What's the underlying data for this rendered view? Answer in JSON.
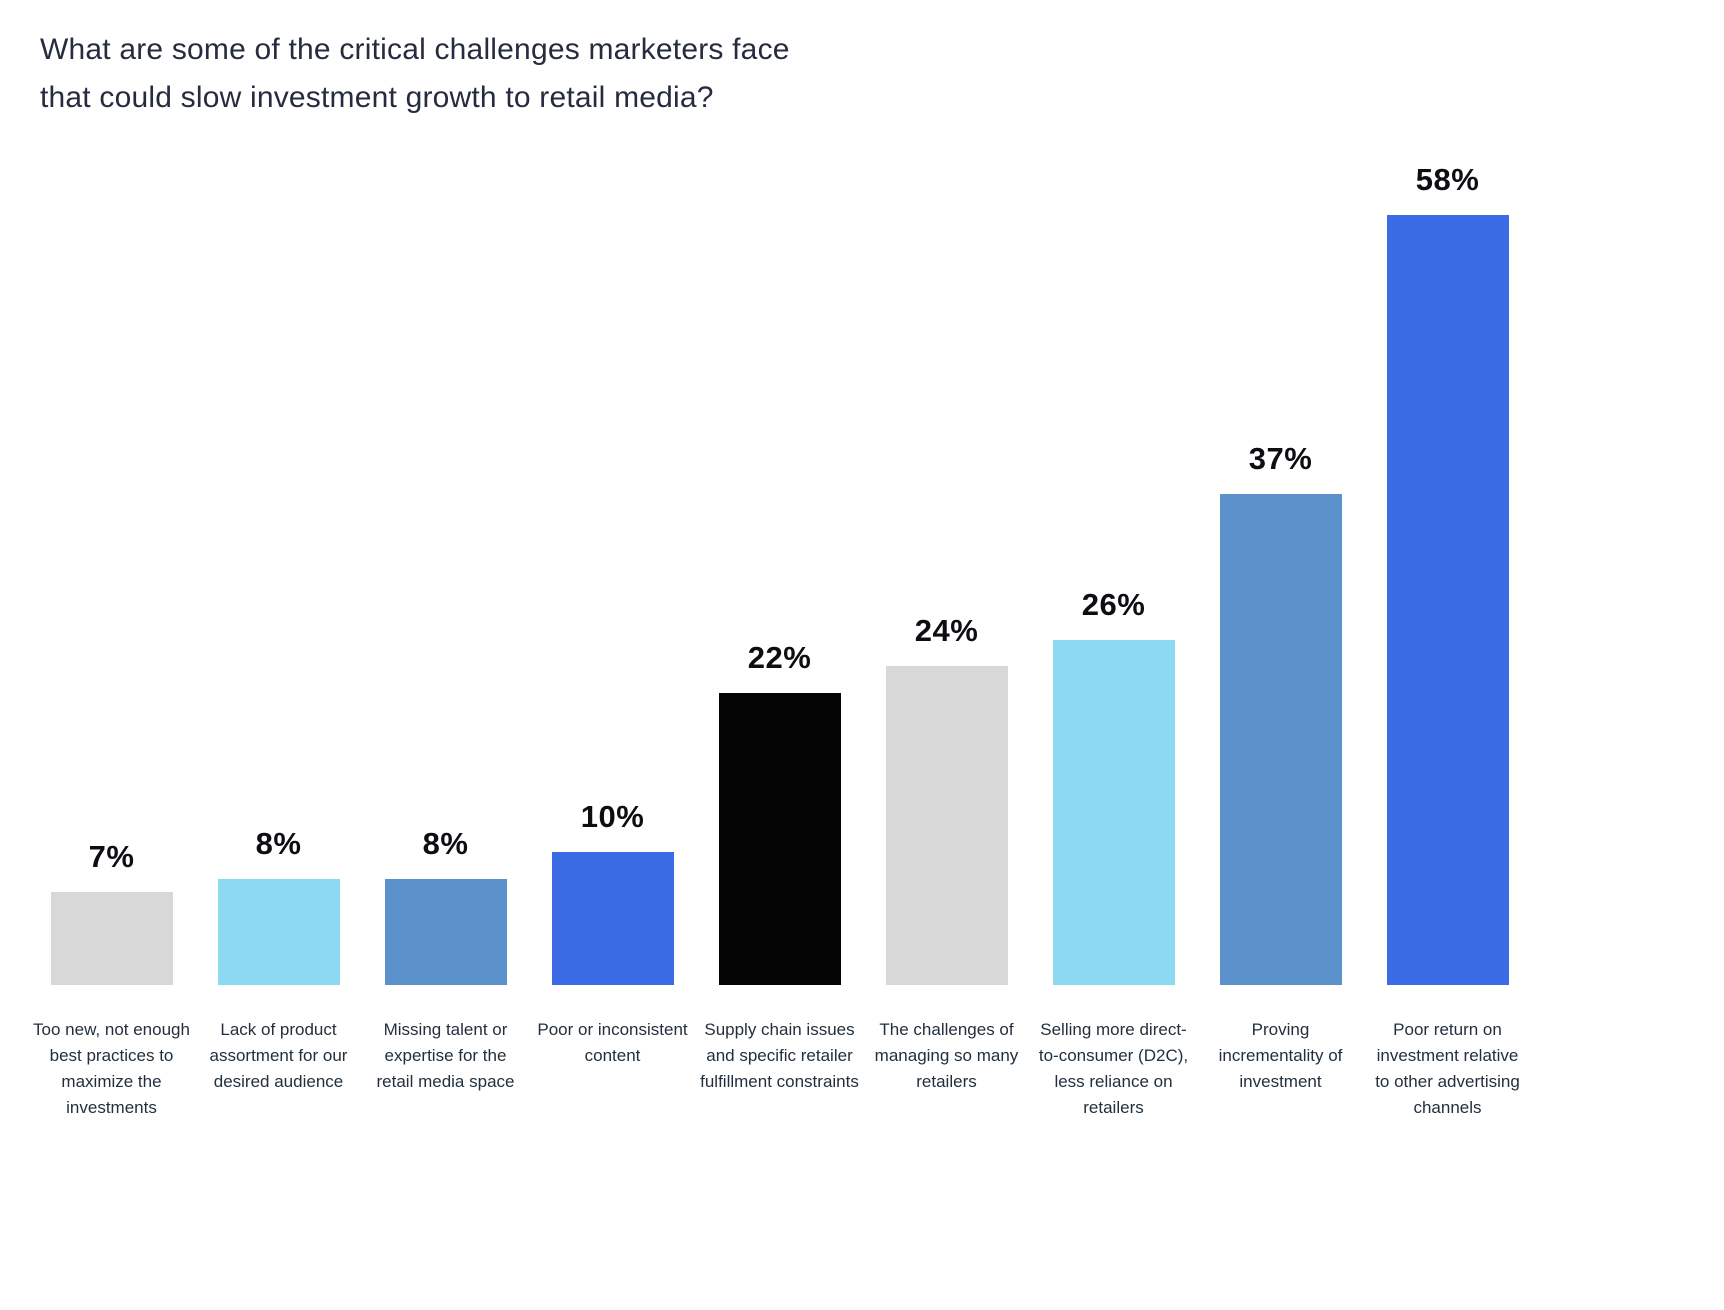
{
  "chart_data": {
    "type": "bar",
    "title": "What are some of the critical challenges marketers face that could slow investment growth to retail media?",
    "value_suffix": "%",
    "categories": [
      "Too new, not enough best practices to maximize the investments",
      "Lack of product assortment for our desired audience",
      "Missing talent or expertise for the retail media space",
      "Poor or inconsistent content",
      "Supply chain issues and specific retailer fulfillment constraints",
      "The challenges of managing so many retailers",
      "Selling more direct-to-consumer (D2C), less reliance on retailers",
      "Proving incrementality of investment",
      "Poor return on investment relative to other advertising channels"
    ],
    "values": [
      7,
      8,
      8,
      10,
      22,
      24,
      26,
      37,
      58
    ],
    "value_labels": [
      "7%",
      "8%",
      "8%",
      "10%",
      "22%",
      "24%",
      "26%",
      "37%",
      "58%"
    ],
    "bar_colors": [
      "#d8d8d8",
      "#8ed9f2",
      "#5b92cb",
      "#3b6be4",
      "#050505",
      "#d8d8d8",
      "#8ed9f2",
      "#5b92cb",
      "#3b6be4"
    ],
    "ylim": [
      0,
      60
    ],
    "grid": false,
    "legend": false,
    "xlabel": "",
    "ylabel": ""
  },
  "colors": {
    "background": "#ffffff",
    "title_text": "#262c3f",
    "value_text": "#0d0d12",
    "category_text": "#22303e"
  }
}
